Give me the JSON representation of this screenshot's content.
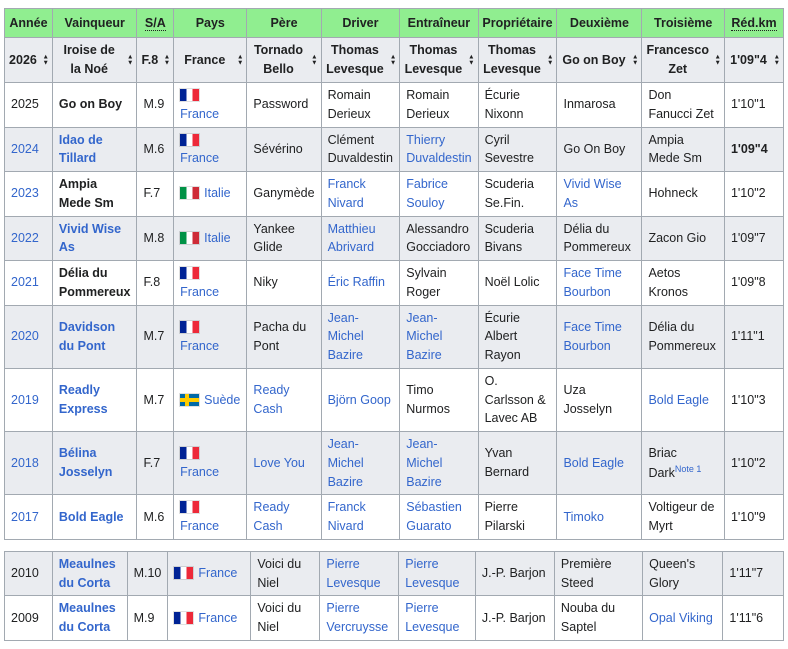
{
  "colors": {
    "header_green": "#90ee90",
    "row_shade": "#eaecf0",
    "border_gray": "#a2a9b1",
    "link_blue": "#3366cc"
  },
  "table": {
    "columns": [
      {
        "key": "annee",
        "label": "Année",
        "abbr": false
      },
      {
        "key": "vainqueur",
        "label": "Vainqueur",
        "abbr": false
      },
      {
        "key": "sa",
        "label": "S/A",
        "abbr": true
      },
      {
        "key": "pays",
        "label": "Pays",
        "abbr": false
      },
      {
        "key": "pere",
        "label": "Père",
        "abbr": false
      },
      {
        "key": "driver",
        "label": "Driver",
        "abbr": false
      },
      {
        "key": "entraineur",
        "label": "Entraîneur",
        "abbr": false
      },
      {
        "key": "proprietaire",
        "label": "Propriétaire",
        "abbr": false
      },
      {
        "key": "deuxieme",
        "label": "Deuxième",
        "abbr": false
      },
      {
        "key": "troisieme",
        "label": "Troisième",
        "abbr": false
      },
      {
        "key": "redkm",
        "label": "Réd.km",
        "abbr": true
      }
    ],
    "sort_row": [
      "2026",
      "Iroise de la Noé",
      "F.8",
      "France",
      "Tornado Bello",
      "Thomas Levesque",
      "Thomas Levesque",
      "Thomas Levesque",
      "Go on Boy",
      "Francesco Zet",
      "1'09\"4"
    ],
    "rows": [
      {
        "shaded": false,
        "cells": [
          {
            "t": "2025"
          },
          {
            "t": "Go on Boy",
            "b": 1
          },
          {
            "t": "M.9"
          },
          {
            "t": "France",
            "l": 1,
            "f": "fr"
          },
          {
            "t": "Password"
          },
          {
            "t": "Romain Derieux"
          },
          {
            "t": "Romain Derieux"
          },
          {
            "t": "Écurie Nixonn"
          },
          {
            "t": "Inmarosa"
          },
          {
            "t": "Don Fanucci Zet"
          },
          {
            "t": "1'10\"1"
          }
        ]
      },
      {
        "shaded": true,
        "cells": [
          {
            "t": "2024",
            "l": 1
          },
          {
            "t": "Idao de Tillard",
            "b": 1,
            "l": 1
          },
          {
            "t": "M.6"
          },
          {
            "t": "France",
            "l": 1,
            "f": "fr"
          },
          {
            "t": "Sévérino"
          },
          {
            "t": "Clément Duvaldestin"
          },
          {
            "t": "Thierry Duvaldestin",
            "l": 1
          },
          {
            "t": "Cyril Sevestre"
          },
          {
            "t": "Go On Boy"
          },
          {
            "t": "Ampia Mede Sm"
          },
          {
            "t": "1'09\"4",
            "b": 1
          }
        ]
      },
      {
        "shaded": false,
        "cells": [
          {
            "t": "2023",
            "l": 1
          },
          {
            "t": "Ampia Mede Sm",
            "b": 1
          },
          {
            "t": "F.7"
          },
          {
            "t": "Italie",
            "l": 1,
            "f": "it"
          },
          {
            "t": "Ganymède"
          },
          {
            "t": "Franck Nivard",
            "l": 1
          },
          {
            "t": "Fabrice Souloy",
            "l": 1
          },
          {
            "t": "Scuderia Se.Fin."
          },
          {
            "t": "Vivid Wise As",
            "l": 1
          },
          {
            "t": "Hohneck"
          },
          {
            "t": "1'10\"2"
          }
        ]
      },
      {
        "shaded": true,
        "cells": [
          {
            "t": "2022",
            "l": 1
          },
          {
            "t": "Vivid Wise As",
            "b": 1,
            "l": 1
          },
          {
            "t": "M.8"
          },
          {
            "t": "Italie",
            "l": 1,
            "f": "it"
          },
          {
            "t": "Yankee Glide"
          },
          {
            "t": "Matthieu Abrivard",
            "l": 1
          },
          {
            "t": "Alessandro Gocciadoro"
          },
          {
            "t": "Scuderia Bivans"
          },
          {
            "t": "Délia du Pommereux"
          },
          {
            "t": "Zacon Gio"
          },
          {
            "t": "1'09\"7"
          }
        ]
      },
      {
        "shaded": false,
        "cells": [
          {
            "t": "2021",
            "l": 1
          },
          {
            "t": "Délia du Pommereux",
            "b": 1
          },
          {
            "t": "F.8"
          },
          {
            "t": "France",
            "l": 1,
            "f": "fr"
          },
          {
            "t": "Niky"
          },
          {
            "t": "Éric Raffin",
            "l": 1
          },
          {
            "t": "Sylvain Roger"
          },
          {
            "t": "Noël Lolic"
          },
          {
            "t": "Face Time Bourbon",
            "l": 1
          },
          {
            "t": "Aetos Kronos"
          },
          {
            "t": "1'09\"8"
          }
        ]
      },
      {
        "shaded": true,
        "cells": [
          {
            "t": "2020",
            "l": 1
          },
          {
            "t": "Davidson du Pont",
            "b": 1,
            "l": 1
          },
          {
            "t": "M.7"
          },
          {
            "t": "France",
            "l": 1,
            "f": "fr"
          },
          {
            "t": "Pacha du Pont"
          },
          {
            "t": "Jean-Michel Bazire",
            "l": 1
          },
          {
            "t": "Jean-Michel Bazire",
            "l": 1
          },
          {
            "t": "Écurie Albert Rayon"
          },
          {
            "t": "Face Time Bourbon",
            "l": 1
          },
          {
            "t": "Délia du Pommereux"
          },
          {
            "t": "1'11\"1"
          }
        ]
      },
      {
        "shaded": false,
        "cells": [
          {
            "t": "2019",
            "l": 1
          },
          {
            "t": "Readly Express",
            "b": 1,
            "l": 1
          },
          {
            "t": "M.7"
          },
          {
            "t": "Suède",
            "l": 1,
            "f": "se"
          },
          {
            "t": "Ready Cash",
            "l": 1
          },
          {
            "t": "Björn Goop",
            "l": 1
          },
          {
            "t": "Timo Nurmos"
          },
          {
            "t": "O. Carlsson & Lavec AB"
          },
          {
            "t": "Uza Josselyn"
          },
          {
            "t": "Bold Eagle",
            "l": 1
          },
          {
            "t": "1'10\"3"
          }
        ]
      },
      {
        "shaded": true,
        "cells": [
          {
            "t": "2018",
            "l": 1
          },
          {
            "t": "Bélina Josselyn",
            "b": 1,
            "l": 1
          },
          {
            "t": "F.7"
          },
          {
            "t": "France",
            "l": 1,
            "f": "fr"
          },
          {
            "t": "Love You",
            "l": 1
          },
          {
            "t": "Jean-Michel Bazire",
            "l": 1
          },
          {
            "t": "Jean-Michel Bazire",
            "l": 1
          },
          {
            "t": "Yvan Bernard"
          },
          {
            "t": "Bold Eagle",
            "l": 1
          },
          {
            "t": "Briac Dark",
            "sup": "Note 1"
          },
          {
            "t": "1'10\"2"
          }
        ]
      },
      {
        "shaded": false,
        "cells": [
          {
            "t": "2017",
            "l": 1
          },
          {
            "t": "Bold Eagle",
            "b": 1,
            "l": 1
          },
          {
            "t": "M.6"
          },
          {
            "t": "France",
            "l": 1,
            "f": "fr"
          },
          {
            "t": "Ready Cash",
            "l": 1
          },
          {
            "t": "Franck Nivard",
            "l": 1
          },
          {
            "t": "Sébastien Guarato",
            "l": 1
          },
          {
            "t": "Pierre Pilarski"
          },
          {
            "t": "Timoko",
            "l": 1
          },
          {
            "t": "Voltigeur de Myrt"
          },
          {
            "t": "1'10\"9"
          }
        ]
      }
    ],
    "rows_lower": [
      {
        "shaded": true,
        "cells": [
          {
            "t": "2010"
          },
          {
            "t": "Meaulnes du Corta",
            "b": 1,
            "l": 1
          },
          {
            "t": "M.10"
          },
          {
            "t": "France",
            "l": 1,
            "f": "fr"
          },
          {
            "t": "Voici du Niel"
          },
          {
            "t": "Pierre Levesque",
            "l": 1
          },
          {
            "t": "Pierre Levesque",
            "l": 1
          },
          {
            "t": "J.-P. Barjon"
          },
          {
            "t": "Première Steed"
          },
          {
            "t": "Queen's Glory"
          },
          {
            "t": "1'11\"7"
          }
        ]
      },
      {
        "shaded": false,
        "cells": [
          {
            "t": "2009"
          },
          {
            "t": "Meaulnes du Corta",
            "b": 1,
            "l": 1
          },
          {
            "t": "M.9"
          },
          {
            "t": "France",
            "l": 1,
            "f": "fr"
          },
          {
            "t": "Voici du Niel"
          },
          {
            "t": "Pierre Vercruysse",
            "l": 1
          },
          {
            "t": "Pierre Levesque",
            "l": 1
          },
          {
            "t": "J.-P. Barjon"
          },
          {
            "t": "Nouba du Saptel"
          },
          {
            "t": "Opal Viking",
            "l": 1
          },
          {
            "t": "1'11\"6"
          }
        ]
      }
    ]
  }
}
